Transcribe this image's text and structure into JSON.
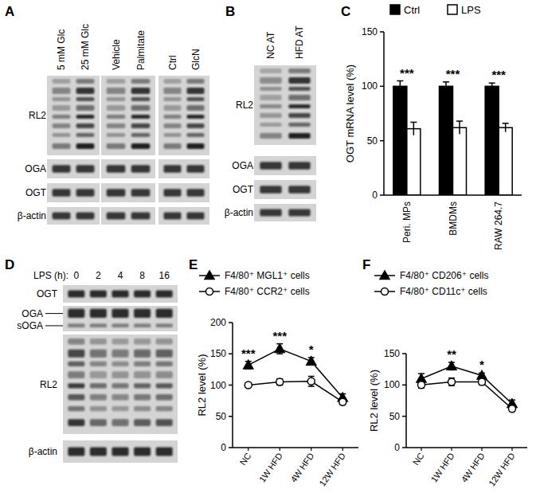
{
  "blots": [
    {
      "panel": "A",
      "groups": [
        [
          "5 mM Glc",
          "25 mM Glc"
        ],
        [
          "Vehicle",
          "Palmitate"
        ],
        [
          "Ctrl",
          "GlcN"
        ]
      ],
      "rows": [
        [
          "RL2"
        ],
        [
          "OGA"
        ],
        [
          "OGT"
        ],
        [
          "β-actin"
        ]
      ]
    },
    {
      "panel": "B",
      "groups": [
        [
          "NC AT",
          "HFD AT"
        ]
      ],
      "rows": [
        [
          "RL2"
        ],
        [
          "OGA"
        ],
        [
          "OGT"
        ],
        [
          "β-actin"
        ]
      ]
    },
    {
      "panel": "D",
      "header": "LPS (h):",
      "groups": [
        [
          "0",
          "2",
          "4",
          "8",
          "16"
        ]
      ],
      "rows": [
        [
          "OGT"
        ],
        [
          "OGA",
          "sOGA"
        ],
        [
          "RL2"
        ],
        [
          "β-actin"
        ]
      ]
    }
  ],
  "chart_data": [
    {
      "panel": "C",
      "type": "bar",
      "categories": [
        "Peri. MPs",
        "BMDMs",
        "RAW 264.7"
      ],
      "y_label": "OGT mRNA level (%)",
      "ylim": [
        0,
        150
      ],
      "yticks": [
        0,
        50,
        100,
        150
      ],
      "legend": "top",
      "series": [
        {
          "name": "Ctrl",
          "color": "#000000",
          "values": [
            100,
            100,
            100
          ],
          "errors": [
            5,
            4,
            3
          ]
        },
        {
          "name": "LPS",
          "color": "#ffffff",
          "values": [
            61,
            62,
            62
          ],
          "errors": [
            6,
            6,
            4
          ]
        }
      ],
      "significance": [
        "***",
        "***",
        "***"
      ]
    },
    {
      "panel": "E",
      "type": "line",
      "categories": [
        "NC",
        "1W HFD",
        "4W HFD",
        "12W HFD"
      ],
      "y_label": "RL2 level (%)",
      "ylim": [
        0,
        200
      ],
      "yticks": [
        0,
        50,
        100,
        150,
        200
      ],
      "legend": "top",
      "series": [
        {
          "name": "F4/80⁺ MGL1⁺ cells",
          "color": "#000000",
          "marker": "triangle",
          "values": [
            132,
            158,
            138,
            80
          ],
          "errors": [
            6,
            8,
            6,
            6
          ]
        },
        {
          "name": "F4/80⁺ CCR2⁺ cells",
          "color": "#000000",
          "marker": "open circle",
          "values": [
            100,
            105,
            106,
            73
          ],
          "errors": [
            3,
            5,
            8,
            4
          ]
        }
      ],
      "significance": [
        "***",
        "***",
        "*",
        null
      ]
    },
    {
      "panel": "F",
      "type": "line",
      "categories": [
        "NC",
        "1W HFD",
        "4W HFD",
        "12W HFD"
      ],
      "y_label": "RL2 level (%)",
      "ylim": [
        0,
        150
      ],
      "yticks": [
        0,
        50,
        100,
        150
      ],
      "legend": "top",
      "series": [
        {
          "name": "F4/80⁺ CD206⁺ cells",
          "color": "#000000",
          "marker": "triangle",
          "values": [
            110,
            130,
            115,
            70
          ],
          "errors": [
            8,
            6,
            4,
            6
          ]
        },
        {
          "name": "F4/80⁺ CD11c⁺ cells",
          "color": "#000000",
          "marker": "open circle",
          "values": [
            100,
            105,
            105,
            62
          ],
          "errors": [
            5,
            6,
            5,
            4
          ]
        }
      ],
      "significance": [
        null,
        "**",
        "*",
        null
      ]
    }
  ]
}
